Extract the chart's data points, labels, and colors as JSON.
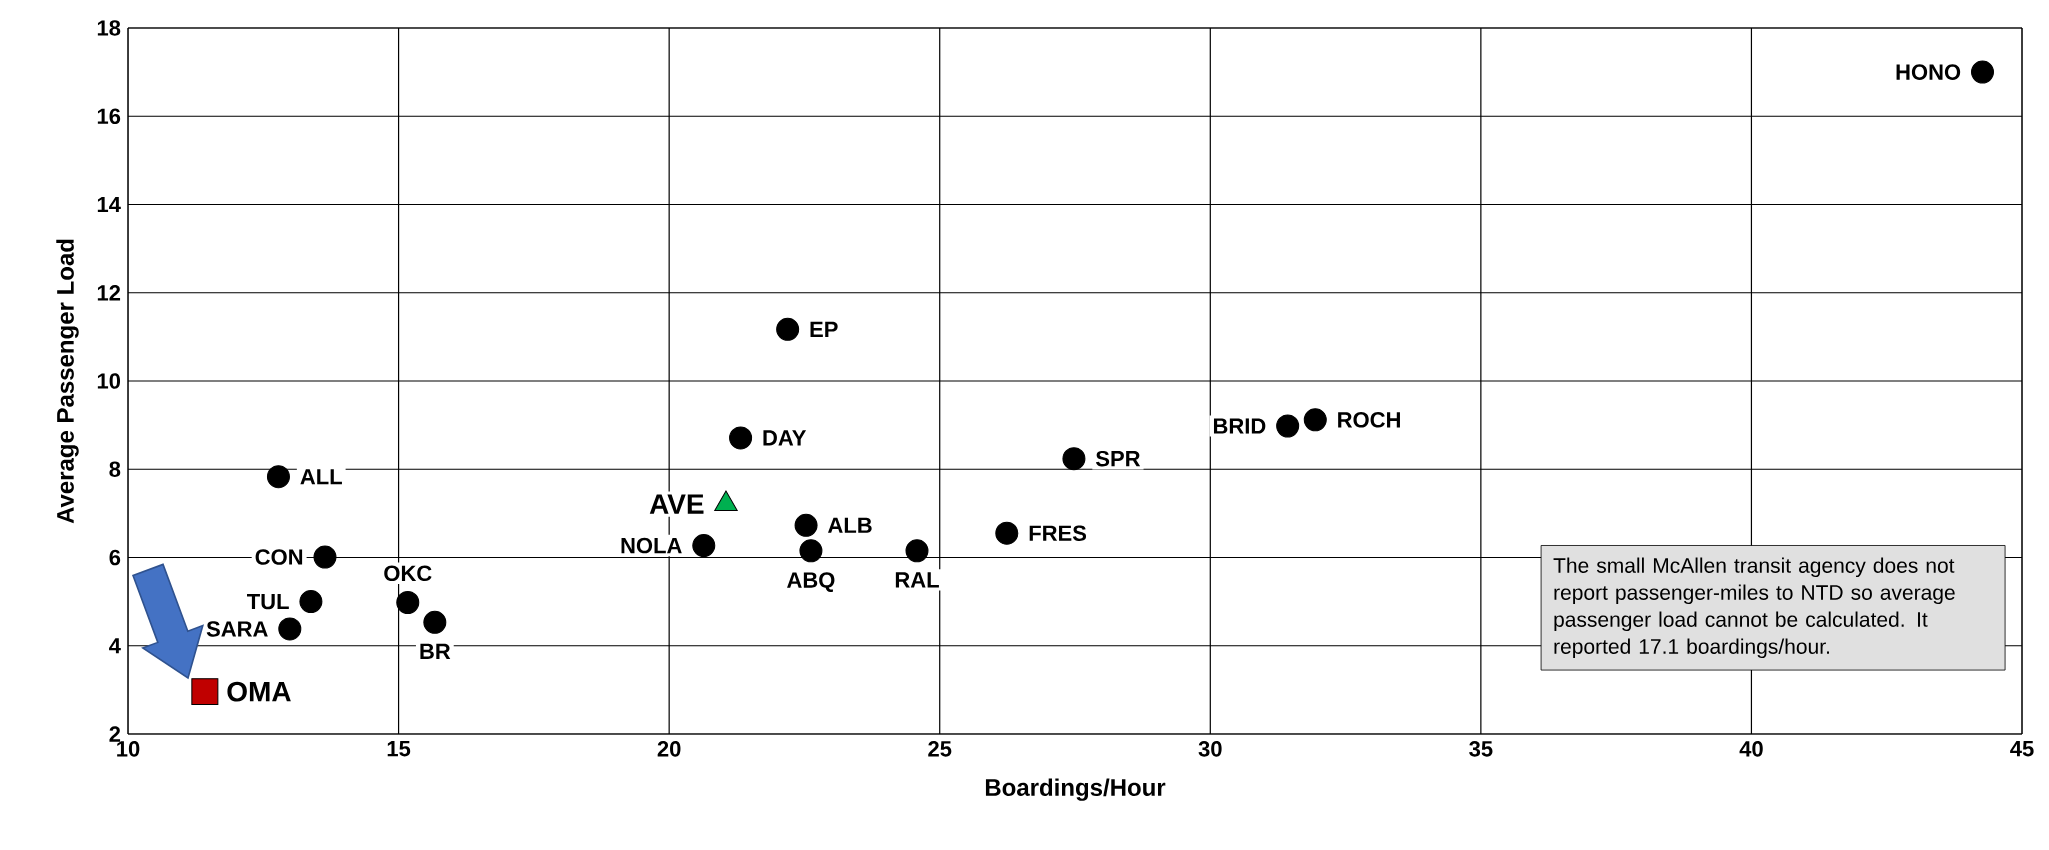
{
  "chart_data": {
    "type": "scatter",
    "xlabel": "Boardings/Hour",
    "ylabel": "Average Passenger Load",
    "xlim": [
      10,
      45
    ],
    "ylim": [
      2,
      18
    ],
    "xticks": [
      10,
      15,
      20,
      25,
      30,
      35,
      40,
      45
    ],
    "yticks": [
      2,
      4,
      6,
      8,
      10,
      12,
      14,
      16,
      18
    ],
    "grid": true,
    "series": [
      {
        "color": "#000000",
        "marker": "circle",
        "x": [
          44.27,
          22.19,
          21.32,
          31.43,
          31.94,
          27.48,
          12.78,
          22.53,
          26.24,
          20.64,
          22.62,
          24.58,
          13.64,
          15.17,
          13.38,
          15.67,
          12.99
        ],
        "values": [
          17.0,
          11.17,
          8.71,
          8.98,
          9.12,
          8.24,
          7.83,
          6.73,
          6.55,
          6.27,
          6.15,
          6.15,
          6.01,
          4.98,
          5.0,
          4.53,
          4.38
        ]
      },
      {
        "name": "AVE",
        "color": "#00b050",
        "marker": "triangle",
        "x": [
          21.05
        ],
        "values": [
          7.21
        ]
      },
      {
        "name": "OMA",
        "color": "#c00000",
        "marker": "square",
        "x": [
          11.42
        ],
        "values": [
          2.96
        ]
      }
    ],
    "annotations": [
      {
        "text": "HONO",
        "x": 44.27,
        "y": 17.0
      },
      {
        "text": "EP",
        "x": 22.19,
        "y": 11.17
      },
      {
        "text": "DAY",
        "x": 21.32,
        "y": 8.71
      },
      {
        "text": "BRID",
        "x": 31.43,
        "y": 8.98
      },
      {
        "text": "ROCH",
        "x": 31.94,
        "y": 9.12
      },
      {
        "text": "SPR",
        "x": 27.48,
        "y": 8.24
      },
      {
        "text": "ALL",
        "x": 12.78,
        "y": 7.83
      },
      {
        "text": "ALB",
        "x": 22.53,
        "y": 6.73
      },
      {
        "text": "FRES",
        "x": 26.24,
        "y": 6.55
      },
      {
        "text": "NOLA",
        "x": 20.64,
        "y": 6.27
      },
      {
        "text": "ABQ",
        "x": 22.62,
        "y": 6.15
      },
      {
        "text": "RAL",
        "x": 24.58,
        "y": 6.15
      },
      {
        "text": "CON",
        "x": 13.64,
        "y": 6.01
      },
      {
        "text": "OKC",
        "x": 15.17,
        "y": 4.98
      },
      {
        "text": "TUL",
        "x": 13.38,
        "y": 5.0
      },
      {
        "text": "BR",
        "x": 15.67,
        "y": 4.53
      },
      {
        "text": "SARA",
        "x": 12.99,
        "y": 4.38
      },
      "The small McAllen transit agency does not report passenger-miles to NTD so average passenger load cannot be calculated.  It reported 17.1 boardings/hour."
    ]
  }
}
